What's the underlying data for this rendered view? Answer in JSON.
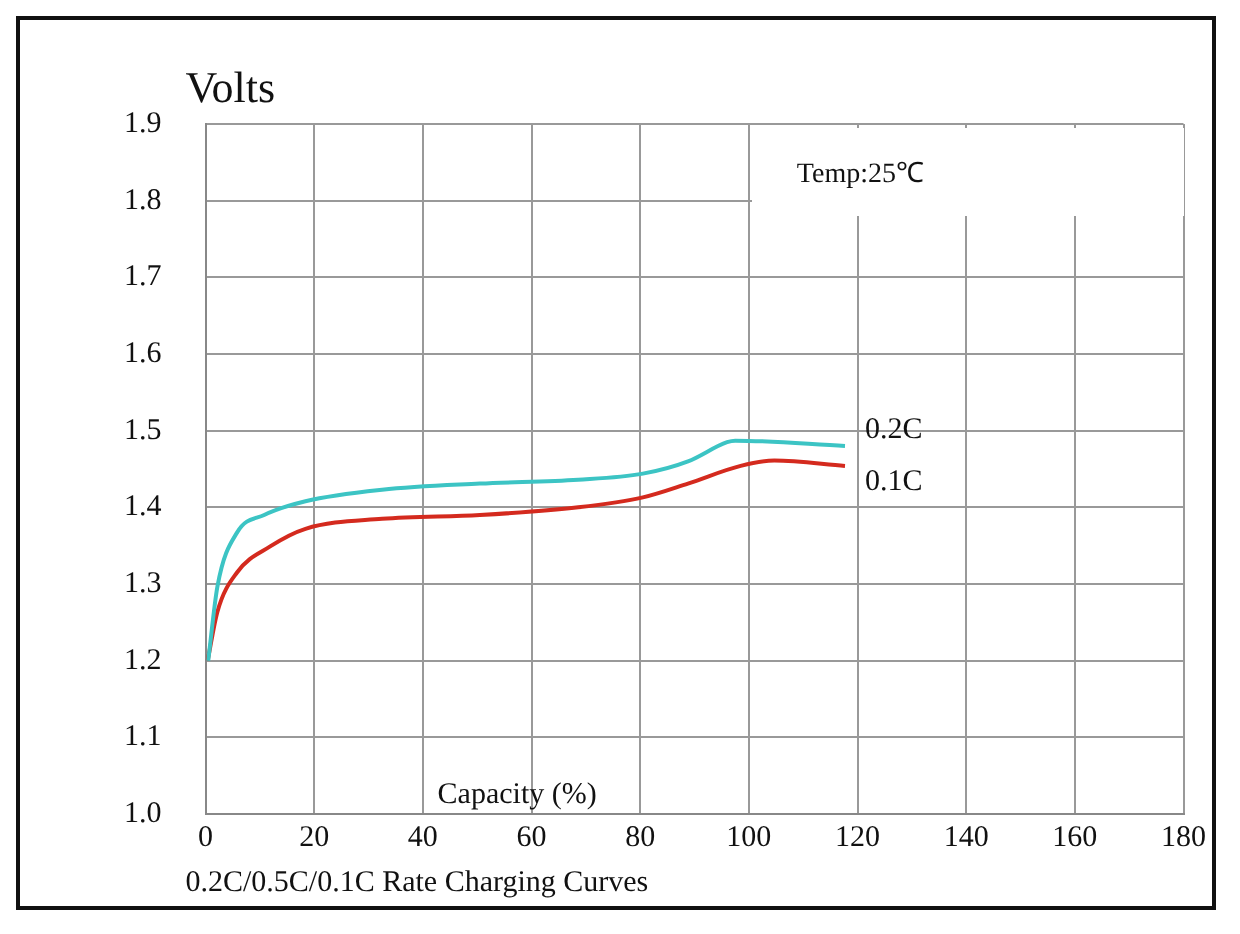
{
  "chart_data": {
    "type": "line",
    "xlabel": "Capacity (%)",
    "ylabel": "Volts",
    "annotations": [
      "Temp:25℃",
      "0.2C/0.5C/0.1C Rate Charging Curves"
    ],
    "series": [
      {
        "name": "0.2C",
        "color": "#3cc4c4",
        "x": [
          0.5,
          2.2,
          5.8,
          10.8,
          18.4,
          32.5,
          50.5,
          68.6,
          80.5,
          88.8,
          96,
          97.5,
          117.7
        ],
        "values": [
          1.2,
          1.297,
          1.367,
          1.39,
          1.408,
          1.423,
          1.431,
          1.436,
          1.444,
          1.46,
          1.485,
          1.487,
          1.48
        ]
      },
      {
        "name": "0.1C",
        "color": "#d42a1e",
        "x": [
          0.4,
          2.2,
          5.8,
          11.9,
          18.4,
          32.5,
          50.5,
          68.6,
          80.5,
          88.8,
          98.5,
          104.7,
          117.7
        ],
        "values": [
          1.2,
          1.264,
          1.315,
          1.349,
          1.372,
          1.385,
          1.39,
          1.4,
          1.413,
          1.431,
          1.454,
          1.461,
          1.454
        ]
      }
    ],
    "xlim": [
      0,
      180
    ],
    "xticks": [
      0,
      20,
      40,
      60,
      80,
      100,
      120,
      140,
      160,
      180
    ],
    "ylim": [
      1.0,
      1.9
    ],
    "yticks": [
      {
        "value": 1.0,
        "label": "1.0"
      },
      1.1,
      1.2,
      1.3,
      1.4,
      1.5,
      1.6,
      1.7,
      1.8,
      1.9
    ],
    "grid": true,
    "legend": false,
    "marker": "none",
    "line_style": "solid"
  }
}
